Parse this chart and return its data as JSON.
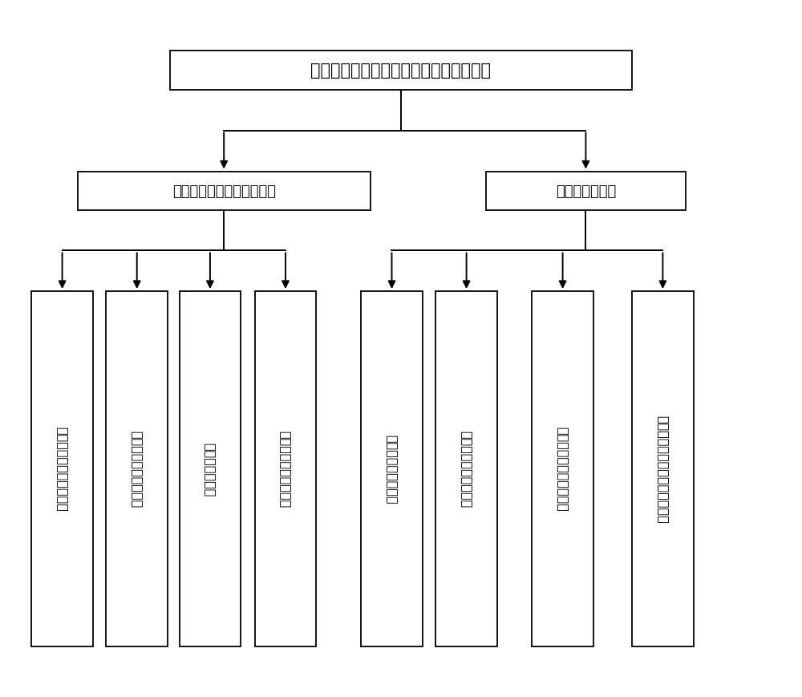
{
  "title": "基于增强现实的计算机辅助骨科手术系统",
  "level2_left": "计算机辅助骨科手术子系统",
  "level2_right": "增强现实子系统",
  "level3_items": [
    "医学图像的解析与预处理",
    "基于交互式的骨骼分割",
    "骨骼的自动分割",
    "体数据场的三维可视化",
    "摄像机视频图像处理",
    "视频目标的检测与发展",
    "三维模型的空间位姿求解",
    "三维模型的可视化以及位姿控制"
  ],
  "bg_color": "#ffffff",
  "box_color": "#ffffff",
  "box_edge_color": "#000000",
  "text_color": "#000000",
  "arrow_color": "#000000",
  "font_size_title": 15,
  "font_size_level2": 13,
  "font_size_level3": 11.5
}
